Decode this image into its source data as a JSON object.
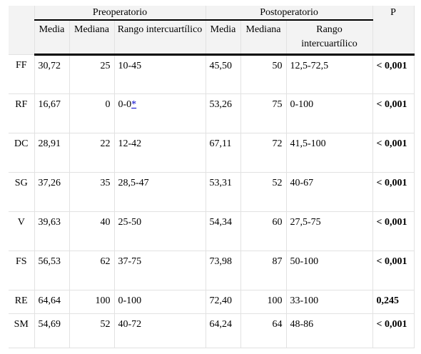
{
  "table": {
    "groups": [
      "Preoperatorio",
      "Postoperatorio"
    ],
    "p_header": "P",
    "subheaders": [
      "Media",
      "Mediana",
      "Rango intercuartílico",
      "Media",
      "Mediana",
      "Rango intercuartílico"
    ],
    "rows": [
      [
        "FF",
        "30,72",
        "25",
        "10-45",
        "45,50",
        "50",
        "12,5-72,5",
        "< 0,001"
      ],
      [
        "RF",
        "16,67",
        "0",
        {
          "text": "0-0",
          "link": "*"
        },
        "53,26",
        "75",
        "0-100",
        "< 0,001"
      ],
      [
        "DC",
        "28,91",
        "22",
        "12-42",
        "67,11",
        "72",
        "41,5-100",
        "< 0,001"
      ],
      [
        "SG",
        "37,26",
        "35",
        "28,5-47",
        "53,31",
        "52",
        "40-67",
        "< 0,001"
      ],
      [
        "V",
        "39,63",
        "40",
        "25-50",
        "54,34",
        "60",
        "27,5-75",
        "< 0,001"
      ],
      [
        "FS",
        "56,53",
        "62",
        "37-75",
        "73,98",
        "87",
        "50-100",
        "< 0,001"
      ],
      [
        "RE",
        "64,64",
        "100",
        "0-100",
        "72,40",
        "100",
        "33-100",
        "0,245"
      ],
      [
        "SM",
        "54,69",
        "52",
        "40-72",
        "64,24",
        "64",
        "48-86",
        "< 0,001"
      ]
    ]
  }
}
